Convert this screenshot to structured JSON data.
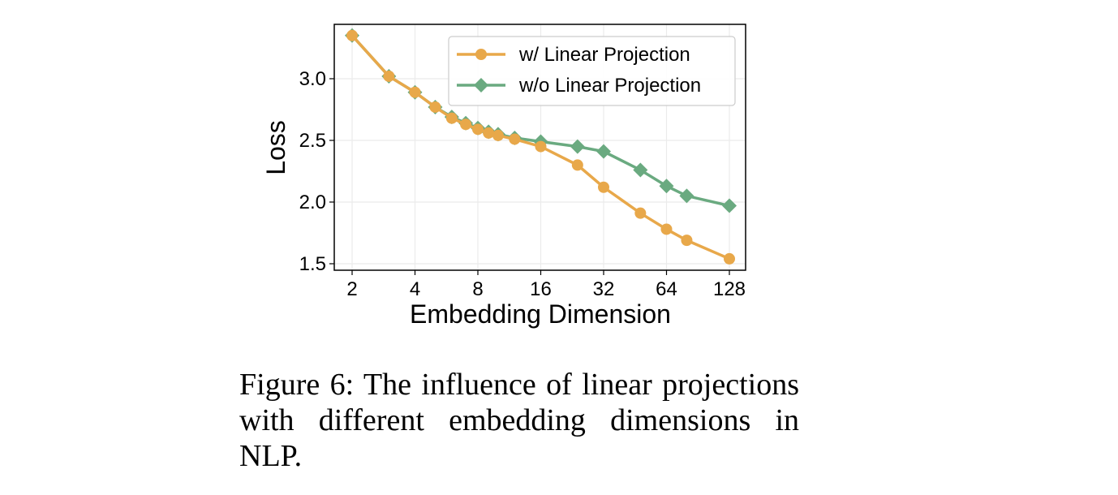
{
  "chart_data": {
    "type": "line",
    "title": "",
    "xlabel": "Embedding Dimension",
    "ylabel": "Loss",
    "xscale": "log2",
    "xlim": [
      2,
      128
    ],
    "ylim": [
      1.47,
      3.42
    ],
    "x_ticks": [
      "2",
      "4",
      "8",
      "16",
      "32",
      "64",
      "128"
    ],
    "y_ticks": [
      "1.5",
      "2.0",
      "2.5",
      "3.0"
    ],
    "grid": true,
    "legend_position": "top-right",
    "x": [
      2,
      3,
      4,
      5,
      6,
      7,
      8,
      9,
      10,
      12,
      16,
      24,
      32,
      48,
      64,
      80,
      128
    ],
    "series": [
      {
        "name": "w/ Linear Projection",
        "color": "#E8A84A",
        "marker": "circle",
        "values": [
          3.35,
          3.02,
          2.89,
          2.77,
          2.68,
          2.63,
          2.59,
          2.56,
          2.54,
          2.51,
          2.45,
          2.3,
          2.12,
          1.91,
          1.78,
          1.69,
          1.54
        ]
      },
      {
        "name": "w/o Linear Projection",
        "color": "#6AAA80",
        "marker": "diamond",
        "values": [
          3.35,
          3.02,
          2.89,
          2.77,
          2.69,
          2.64,
          2.6,
          2.57,
          2.55,
          2.52,
          2.49,
          2.45,
          2.41,
          2.26,
          2.13,
          2.05,
          1.97
        ]
      }
    ]
  },
  "caption": "Figure 6: The influence of linear projections with different embedding dimensions in NLP."
}
